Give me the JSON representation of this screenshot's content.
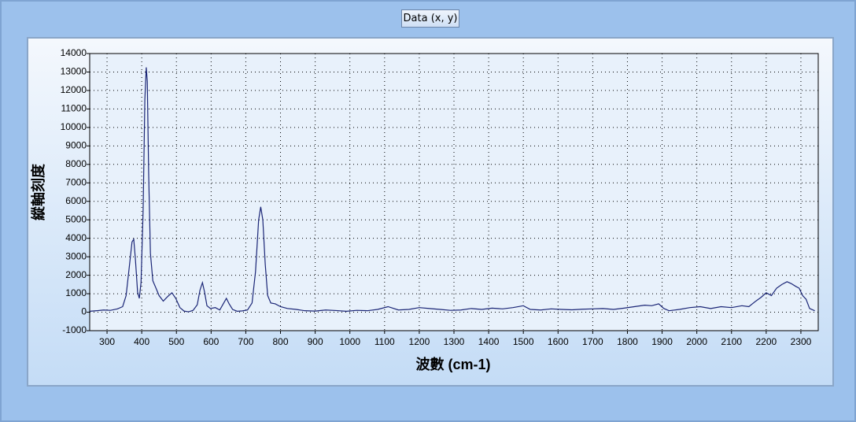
{
  "chart_data": {
    "type": "line",
    "title": "Data (x, y)",
    "x_label": "波數 (cm-1)",
    "y_label": "縱軸刻度",
    "xlim": [
      250,
      2350
    ],
    "xticks": [
      300,
      400,
      500,
      600,
      700,
      800,
      900,
      1000,
      1100,
      1200,
      1300,
      1400,
      1500,
      1600,
      1700,
      1800,
      1900,
      2000,
      2100,
      2200,
      2300
    ],
    "ylim": [
      -1000,
      14000
    ],
    "yticks": [
      -1000,
      0,
      1000,
      2000,
      3000,
      4000,
      5000,
      6000,
      7000,
      8000,
      9000,
      10000,
      11000,
      12000,
      13000,
      14000
    ],
    "grid": true,
    "x": [
      250,
      270,
      290,
      310,
      330,
      345,
      355,
      365,
      372,
      377,
      382,
      388,
      393,
      398,
      404,
      409,
      413,
      416,
      420,
      425,
      432,
      440,
      450,
      462,
      475,
      487,
      498,
      510,
      522,
      535,
      548,
      560,
      568,
      575,
      581,
      588,
      598,
      612,
      625,
      635,
      644,
      652,
      662,
      675,
      690,
      705,
      718,
      728,
      737,
      743,
      749,
      756,
      763,
      772,
      785,
      800,
      820,
      845,
      870,
      900,
      930,
      960,
      990,
      1020,
      1050,
      1080,
      1110,
      1140,
      1170,
      1200,
      1230,
      1260,
      1290,
      1320,
      1350,
      1380,
      1410,
      1440,
      1470,
      1500,
      1520,
      1550,
      1580,
      1610,
      1640,
      1670,
      1700,
      1730,
      1760,
      1790,
      1820,
      1850,
      1870,
      1890,
      1905,
      1920,
      1950,
      1980,
      2010,
      2040,
      2070,
      2100,
      2130,
      2150,
      2170,
      2185,
      2200,
      2215,
      2230,
      2245,
      2260,
      2272,
      2285,
      2295,
      2305,
      2315,
      2325,
      2340
    ],
    "series": [
      {
        "color": "#1a2576",
        "values": [
          50,
          80,
          120,
          100,
          180,
          300,
          900,
          2600,
          3800,
          3950,
          2800,
          1100,
          750,
          1600,
          5500,
          11500,
          13250,
          12500,
          7500,
          3200,
          1700,
          1350,
          900,
          600,
          850,
          1050,
          750,
          250,
          60,
          20,
          100,
          400,
          1200,
          1600,
          1100,
          350,
          200,
          250,
          120,
          450,
          750,
          450,
          150,
          50,
          70,
          120,
          500,
          2200,
          5000,
          5700,
          5000,
          2600,
          900,
          500,
          450,
          300,
          200,
          150,
          80,
          60,
          120,
          90,
          50,
          100,
          80,
          150,
          300,
          120,
          150,
          250,
          200,
          150,
          100,
          120,
          200,
          150,
          220,
          180,
          250,
          350,
          150,
          120,
          180,
          150,
          130,
          160,
          180,
          200,
          150,
          220,
          300,
          380,
          350,
          450,
          200,
          80,
          150,
          250,
          300,
          200,
          300,
          250,
          350,
          300,
          600,
          800,
          1050,
          900,
          1300,
          1500,
          1650,
          1550,
          1400,
          1300,
          900,
          700,
          200,
          80
        ]
      }
    ]
  }
}
